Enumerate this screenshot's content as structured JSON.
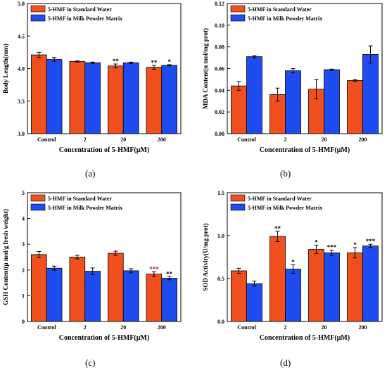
{
  "figure": {
    "panels": [
      {
        "label": "(a)"
      },
      {
        "label": "(b)"
      },
      {
        "label": "(c)"
      },
      {
        "label": "(d)"
      }
    ]
  },
  "chart_data": [
    {
      "type": "bar",
      "categories": [
        "Control",
        "2",
        "20",
        "200"
      ],
      "xlabel": "Concentration of 5-HMF(μM)",
      "ylabel": "Body Length(mm)",
      "ylim": [
        3.0,
        5.0
      ],
      "yticks": [
        "3.0",
        "3.5",
        "4.0",
        "4.5",
        "5.0"
      ],
      "legend_position": "top-left",
      "series": [
        {
          "name": "5-HMF in Standard Water",
          "color": "#f0501e",
          "values": [
            4.21,
            4.11,
            4.04,
            4.02
          ],
          "errors": [
            0.04,
            0.01,
            0.03,
            0.03
          ],
          "significance": [
            "",
            "",
            "**",
            "**"
          ]
        },
        {
          "name": "5-HMF in Milk Powder Matrix",
          "color": "#1f4cf0",
          "values": [
            4.14,
            4.09,
            4.09,
            4.05
          ],
          "errors": [
            0.03,
            0.01,
            0.01,
            0.01
          ],
          "significance": [
            "",
            "",
            "",
            "*"
          ]
        }
      ]
    },
    {
      "type": "bar",
      "categories": [
        "Control",
        "2",
        "20",
        "200"
      ],
      "xlabel": "Concentration of 5-HMF(μM)",
      "ylabel": "MDA Content(n mol/mg prot)",
      "ylim": [
        0.0,
        0.12
      ],
      "yticks": [
        "0.00",
        "0.02",
        "0.04",
        "0.06",
        "0.08",
        "0.10",
        "0.12"
      ],
      "legend_position": "top-left",
      "series": [
        {
          "name": "5-HMF in Standard Water",
          "color": "#f0501e",
          "values": [
            0.044,
            0.036,
            0.041,
            0.049
          ],
          "errors": [
            0.004,
            0.006,
            0.009,
            0.001
          ],
          "significance": [
            "",
            "",
            "",
            ""
          ]
        },
        {
          "name": "5-HMF in Milk Powder Matrix",
          "color": "#1f4cf0",
          "values": [
            0.071,
            0.058,
            0.059,
            0.073
          ],
          "errors": [
            0.001,
            0.002,
            0.0005,
            0.008
          ],
          "significance": [
            "",
            "",
            "",
            ""
          ]
        }
      ]
    },
    {
      "type": "bar",
      "categories": [
        "Control",
        "2",
        "20",
        "200"
      ],
      "xlabel": "Concentration of 5-HMF(μM)",
      "ylabel": "GSH Content(μ mol/g fresh weight)",
      "ylim": [
        0,
        5
      ],
      "yticks": [
        "0",
        "1",
        "2",
        "3",
        "4",
        "5"
      ],
      "legend_position": "top-left",
      "series": [
        {
          "name": "5-HMF in Standard Water",
          "color": "#f0501e",
          "values": [
            2.6,
            2.5,
            2.65,
            1.84
          ],
          "errors": [
            0.12,
            0.07,
            0.08,
            0.09
          ],
          "significance": [
            "",
            "",
            "",
            "***"
          ]
        },
        {
          "name": "5-HMF in Milk Powder Matrix",
          "color": "#1f4cf0",
          "values": [
            2.07,
            1.95,
            1.97,
            1.68
          ],
          "errors": [
            0.08,
            0.13,
            0.08,
            0.06
          ],
          "significance": [
            "",
            "",
            "",
            "**"
          ]
        }
      ]
    },
    {
      "type": "bar",
      "categories": [
        "Control",
        "2",
        "20",
        "200"
      ],
      "xlabel": "Concentration of 5-HMF(μM)",
      "ylabel": "SOD Activity(U/mg prot)",
      "ylim": [
        0.0,
        1.5
      ],
      "yticks": [
        "0.0",
        "0.5",
        "1.0",
        "1.5"
      ],
      "legend_position": "top-left",
      "series": [
        {
          "name": "5-HMF in Standard Water",
          "color": "#f0501e",
          "values": [
            0.59,
            0.99,
            0.84,
            0.8
          ],
          "errors": [
            0.03,
            0.06,
            0.05,
            0.06
          ],
          "significance": [
            "",
            "**",
            "*",
            "*"
          ]
        },
        {
          "name": "5-HMF in Milk Powder Matrix",
          "color": "#1f4cf0",
          "values": [
            0.44,
            0.61,
            0.8,
            0.88
          ],
          "errors": [
            0.03,
            0.05,
            0.03,
            0.02
          ],
          "significance": [
            "",
            "*",
            "***",
            "***"
          ]
        }
      ]
    }
  ]
}
